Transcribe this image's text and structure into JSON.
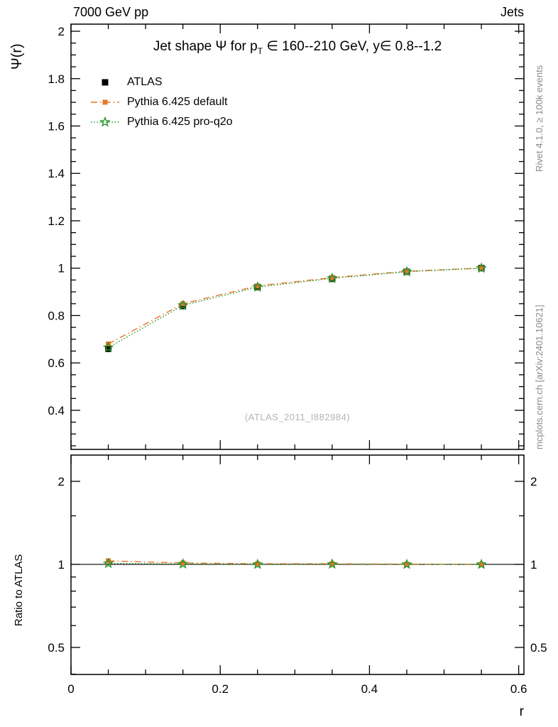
{
  "header": {
    "left": "7000 GeV pp",
    "right": "Jets"
  },
  "plot_title": {
    "pre": "Jet shape Ψ for p",
    "sub": "T",
    "post": " ∈ 160--210 GeV, y∈ 0.8--1.2"
  },
  "watermark": "(ATLAS_2011_I882984)",
  "side_notes": {
    "top": "Rivet 4.1.0, ≥ 100k events",
    "bottom": "mcplots.cern.ch [arXiv:2401.10621]"
  },
  "chart_data": {
    "type": "line",
    "title": "Jet shape Ψ for pT ∈ 160--210 GeV, y∈ 0.8--1.2",
    "x": [
      0.05,
      0.15,
      0.25,
      0.35,
      0.45,
      0.55
    ],
    "series": [
      {
        "name": "ATLAS",
        "color": "#000000",
        "marker": "filled-square",
        "style": "points",
        "values": [
          0.66,
          0.84,
          0.92,
          0.955,
          0.985,
          1.0
        ],
        "errors": [
          0.012,
          0.009,
          0.007,
          0.005,
          0.004,
          0.003
        ]
      },
      {
        "name": "Pythia 6.425 default",
        "color": "#e8752a",
        "marker": "filled-square",
        "style": "dashdot",
        "values": [
          0.68,
          0.85,
          0.925,
          0.96,
          0.987,
          1.0
        ]
      },
      {
        "name": "Pythia 6.425 pro-q2o",
        "color": "#2a962a",
        "marker": "open-star",
        "style": "dotted",
        "values": [
          0.665,
          0.843,
          0.92,
          0.957,
          0.985,
          1.0
        ]
      }
    ],
    "ratio": {
      "baseline": 1,
      "series": [
        {
          "name": "Pythia 6.425 default",
          "color": "#e8752a",
          "marker": "filled-square",
          "style": "dashdot",
          "values": [
            1.03,
            1.012,
            1.005,
            1.005,
            1.002,
            1.0
          ]
        },
        {
          "name": "Pythia 6.425 pro-q2o",
          "color": "#2a962a",
          "marker": "open-star",
          "style": "dotted",
          "values": [
            1.008,
            1.004,
            1.0,
            1.002,
            1.0,
            1.0
          ]
        }
      ]
    },
    "axes": {
      "x": {
        "min": 0,
        "max": 0.607,
        "label": "r",
        "minor_step": 0.05,
        "ticks": [
          {
            "v": 0,
            "label": "0"
          },
          {
            "v": 0.2,
            "label": "0.2"
          },
          {
            "v": 0.4,
            "label": "0.4"
          },
          {
            "v": 0.6,
            "label": "0.6"
          }
        ]
      },
      "y_main": {
        "min": 0.235,
        "max": 2.03,
        "scale": "linear",
        "label": "Ψ(r)",
        "minor_step": 0.05,
        "ticks": [
          {
            "v": 0.4,
            "label": "0.4"
          },
          {
            "v": 0.6,
            "label": "0.6"
          },
          {
            "v": 0.8,
            "label": "0.8"
          },
          {
            "v": 1,
            "label": "1"
          },
          {
            "v": 1.2,
            "label": "1.2"
          },
          {
            "v": 1.4,
            "label": "1.4"
          },
          {
            "v": 1.6,
            "label": "1.6"
          },
          {
            "v": 1.8,
            "label": "1.8"
          },
          {
            "v": 2,
            "label": "2"
          }
        ]
      },
      "y_ratio": {
        "min": 0.399,
        "max": 2.49,
        "scale": "log",
        "label": "Ratio to ATLAS",
        "ticks": [
          {
            "v": 0.5,
            "label": "0.5"
          },
          {
            "v": 1,
            "label": "1"
          },
          {
            "v": 2,
            "label": "2"
          }
        ],
        "minors": [
          0.4,
          0.6,
          0.7,
          0.8,
          0.9,
          1.5
        ]
      }
    }
  }
}
